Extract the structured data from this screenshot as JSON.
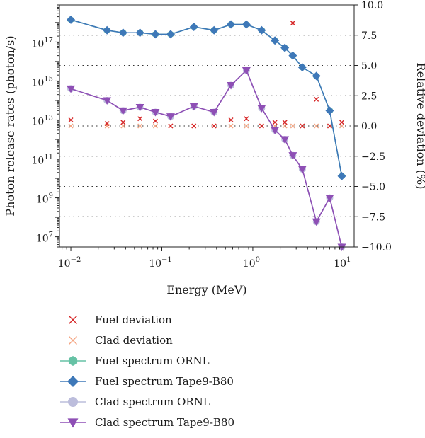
{
  "chart_data": {
    "type": "line",
    "xlabel": "Energy (MeV)",
    "ylabel": "Photon release rates (photon/s)",
    "y2label": "Relative deviation (%)",
    "x_scale": "log",
    "y_scale": "log",
    "xlim": [
      0.0075,
      13
    ],
    "ylim": [
      3000000.0,
      8e+18
    ],
    "y2lim": [
      -10,
      10
    ],
    "x_ticks": [
      {
        "value": 0.01,
        "base": "10",
        "exp": "−2"
      },
      {
        "value": 0.1,
        "base": "10",
        "exp": "−1"
      },
      {
        "value": 1,
        "base": "10",
        "exp": "0"
      },
      {
        "value": 10,
        "base": "10",
        "exp": "1"
      }
    ],
    "y_ticks": [
      {
        "value": 10000000.0,
        "base": "10",
        "exp": "7"
      },
      {
        "value": 1000000000.0,
        "base": "10",
        "exp": "9"
      },
      {
        "value": 100000000000.0,
        "base": "10",
        "exp": "11"
      },
      {
        "value": 10000000000000.0,
        "base": "10",
        "exp": "13"
      },
      {
        "value": 1000000000000000.0,
        "base": "10",
        "exp": "15"
      },
      {
        "value": 1e+17,
        "base": "10",
        "exp": "17"
      }
    ],
    "y2_ticks": [
      "10.0",
      "7.5",
      "5.0",
      "2.5",
      "0.0",
      "−2.5",
      "−5.0",
      "−7.5",
      "−10.0"
    ],
    "y2_tick_values": [
      10,
      7.5,
      5,
      2.5,
      0,
      -2.5,
      -5,
      -7.5,
      -10
    ],
    "grid": "dotted horizontal lines at right-axis ticks",
    "legend_position": "below",
    "x": [
      0.01,
      0.025,
      0.0375,
      0.0575,
      0.085,
      0.125,
      0.225,
      0.375,
      0.575,
      0.85,
      1.25,
      1.75,
      2.25,
      2.75,
      3.5,
      5.0,
      7.0,
      9.5
    ],
    "series": [
      {
        "name": "Fuel deviation",
        "axis": "right",
        "marker": "x",
        "color": "#d62728",
        "y": [
          0.5,
          0.2,
          0.3,
          0.6,
          0.4,
          0.0,
          0.0,
          0.0,
          0.5,
          0.6,
          0.0,
          0.3,
          0.3,
          8.5,
          0.0,
          2.2,
          0.0,
          0.3
        ]
      },
      {
        "name": "Clad deviation",
        "axis": "right",
        "marker": "x",
        "color": "#f4a582",
        "y": [
          0.0,
          0.0,
          0.0,
          0.0,
          0.0,
          0.0,
          0.0,
          0.0,
          0.0,
          0.0,
          0.0,
          0.0,
          0.0,
          0.0,
          0.0,
          0.0,
          0.0,
          0.0
        ]
      },
      {
        "name": "Fuel spectrum ORNL",
        "axis": "left",
        "marker": "hexagon",
        "color": "#66c2a5",
        "y": [
          1.4e+18,
          4e+17,
          3e+17,
          3e+17,
          2.5e+17,
          2.5e+17,
          6e+17,
          4e+17,
          8e+17,
          8e+17,
          4e+17,
          1.2e+17,
          5e+16,
          2e+16,
          5000000000000000.0,
          1800000000000000.0,
          30000000000000.0,
          13000000000.0
        ]
      },
      {
        "name": "Fuel spectrum Tape9-B80",
        "axis": "left",
        "marker": "diamond",
        "color": "#3e78b8",
        "y": [
          1.4e+18,
          4e+17,
          3e+17,
          3e+17,
          2.5e+17,
          2.5e+17,
          6e+17,
          4e+17,
          8e+17,
          8e+17,
          4e+17,
          1.2e+17,
          5e+16,
          2e+16,
          5000000000000000.0,
          1800000000000000.0,
          30000000000000.0,
          13000000000.0
        ]
      },
      {
        "name": "Clad spectrum ORNL",
        "axis": "left",
        "marker": "circle",
        "color": "#bcbddc",
        "y": [
          400000000000000.0,
          100000000000000.0,
          30000000000000.0,
          45000000000000.0,
          25000000000000.0,
          15000000000000.0,
          50000000000000.0,
          25000000000000.0,
          600000000000000.0,
          3500000000000000.0,
          40000000000000.0,
          3000000000000.0,
          1000000000000.0,
          150000000000.0,
          30000000000.0,
          60000000.0,
          1000000000.0,
          3000000.0
        ]
      },
      {
        "name": "Clad spectrum Tape9-B80",
        "axis": "left",
        "marker": "triangle-down",
        "color": "#8e4fb5",
        "y": [
          400000000000000.0,
          100000000000000.0,
          30000000000000.0,
          45000000000000.0,
          25000000000000.0,
          15000000000000.0,
          50000000000000.0,
          25000000000000.0,
          600000000000000.0,
          3500000000000000.0,
          40000000000000.0,
          3000000000000.0,
          1000000000000.0,
          150000000000.0,
          30000000000.0,
          60000000.0,
          1000000000.0,
          3000000.0
        ]
      }
    ]
  }
}
